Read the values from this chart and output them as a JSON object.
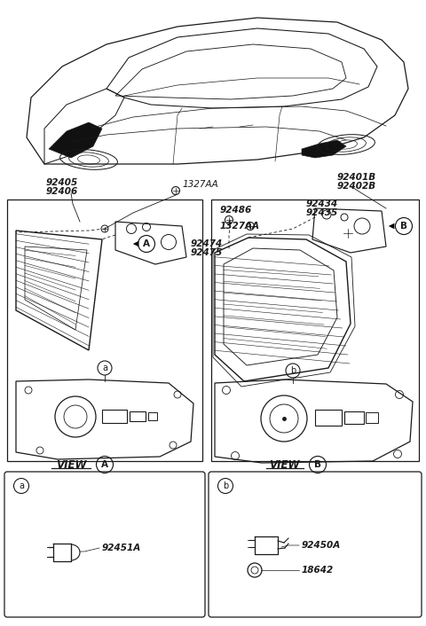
{
  "bg_color": "#ffffff",
  "line_color": "#1a1a1a",
  "text_color": "#1a1a1a",
  "part_numbers": {
    "top_center": "1327AA",
    "left_top1": "92405",
    "left_top2": "92406",
    "left_inner1": "92474",
    "left_inner2": "92475",
    "right_top1": "92401B",
    "right_top2": "92402B",
    "right_fastener": "92486",
    "right_screw": "1327AA",
    "right_inner1": "92434",
    "right_inner2": "92435",
    "left_detail": "92451A",
    "right_detail1": "92450A",
    "right_detail2": "18642"
  }
}
